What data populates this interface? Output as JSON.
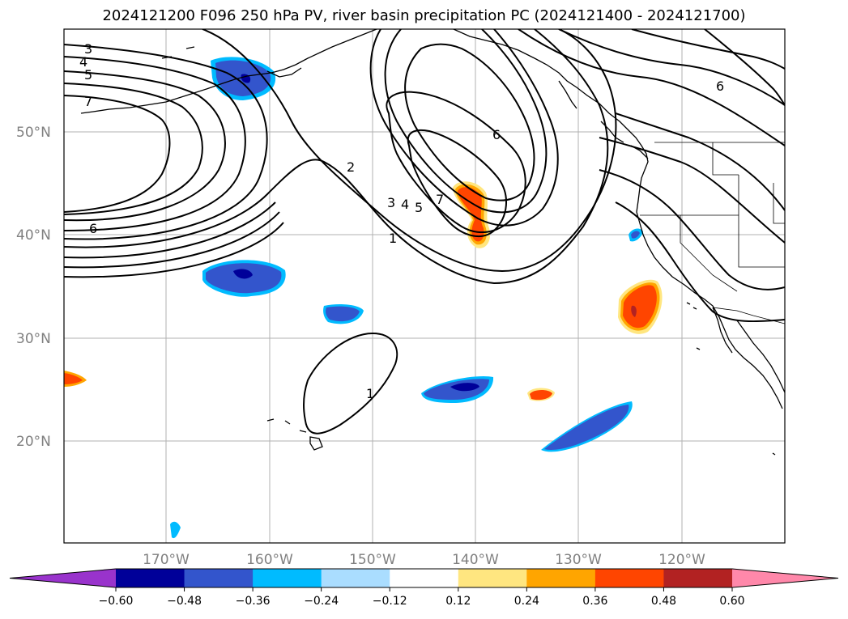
{
  "title": "2024121200 F096 250 hPa PV, river basin precipitation PC (2024121400 - 2024121700)",
  "map": {
    "lat_labels": [
      "50°N",
      "40°N",
      "30°N",
      "20°N"
    ],
    "lon_labels": [
      "170°W",
      "160°W",
      "150°W",
      "140°W",
      "130°W",
      "120°W"
    ],
    "pv_contour_labels": [
      "3",
      "4",
      "5",
      "7",
      "6",
      "2",
      "3",
      "4",
      "5",
      "7",
      "6",
      "1",
      "6",
      "1"
    ]
  },
  "colorbar": {
    "ticks": [
      "−0.60",
      "−0.48",
      "−0.36",
      "−0.24",
      "−0.12",
      "0.12",
      "0.24",
      "0.36",
      "0.48",
      "0.60"
    ],
    "colors": [
      "#9933cc",
      "#000099",
      "#3355cc",
      "#00bbff",
      "#aaddff",
      "#ffffff",
      "#ffe680",
      "#ffa500",
      "#ff4500",
      "#b22222",
      "#ff88aa"
    ]
  }
}
